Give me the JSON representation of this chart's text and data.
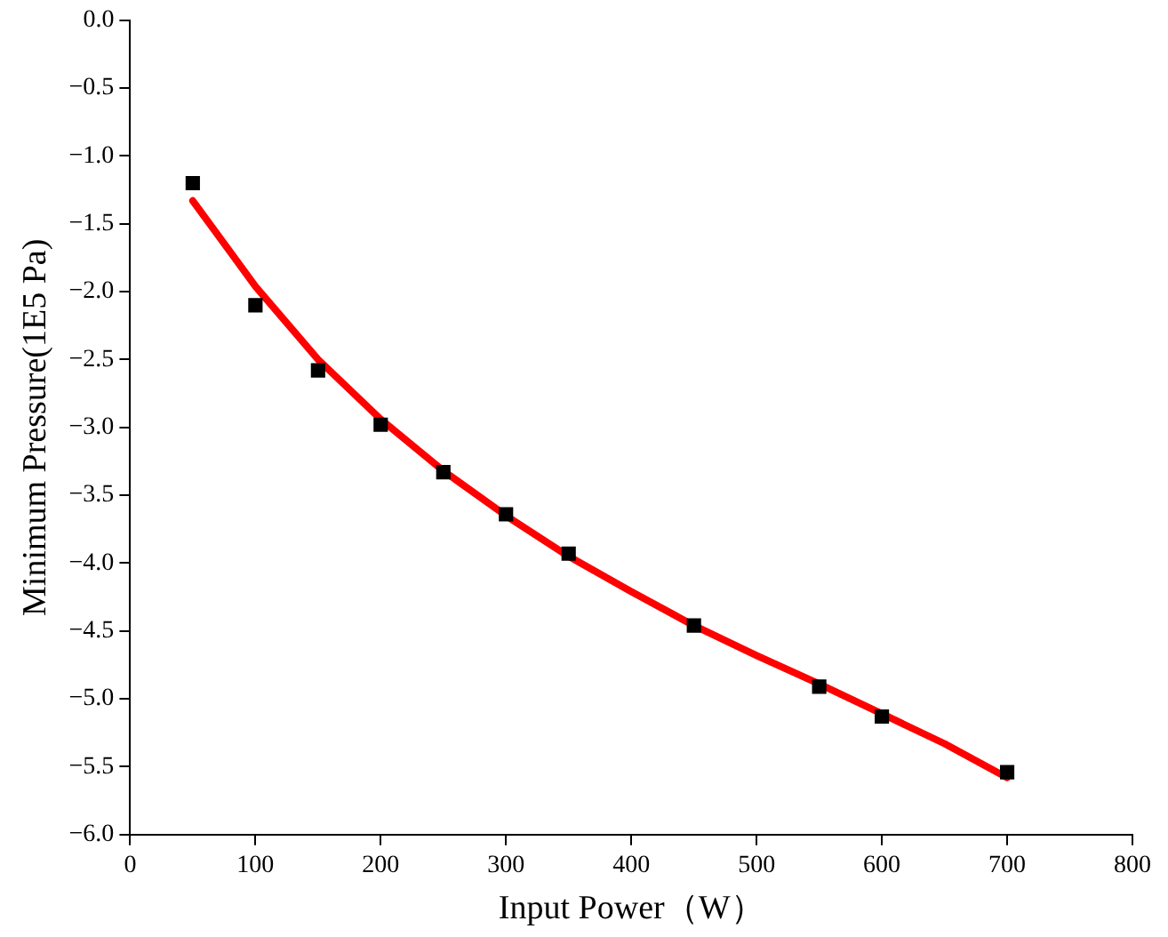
{
  "chart_data": {
    "type": "scatter",
    "xlabel": "Input Power（W）",
    "ylabel": "Minimum Pressure(1E5 Pa)",
    "xlim": [
      0,
      800
    ],
    "xticks": [
      0,
      100,
      200,
      300,
      400,
      500,
      600,
      700,
      800
    ],
    "ylim": [
      -6,
      0
    ],
    "yticks": [
      {
        "value": 0,
        "label": "0.0"
      },
      {
        "value": -0.5,
        "label": "−0.5"
      },
      {
        "value": -1,
        "label": "−1.0"
      },
      {
        "value": -1.5,
        "label": "−1.5"
      },
      {
        "value": -2,
        "label": "−2.0"
      },
      {
        "value": -2.5,
        "label": "−2.5"
      },
      {
        "value": -3,
        "label": "−3.0"
      },
      {
        "value": -3.5,
        "label": "−3.5"
      },
      {
        "value": -4,
        "label": "−4.0"
      },
      {
        "value": -4.5,
        "label": "−4.5"
      },
      {
        "value": -5,
        "label": "−5.0"
      },
      {
        "value": -5.5,
        "label": "−5.5"
      },
      {
        "value": -6,
        "label": "−6.0"
      }
    ],
    "grid": false,
    "legend": false,
    "series": [
      {
        "type": "scatter",
        "color": "#000000",
        "marker": "square",
        "x": [
          50,
          100,
          150,
          200,
          250,
          300,
          350,
          450,
          550,
          600,
          700
        ],
        "values": [
          -1.2,
          -2.1,
          -2.58,
          -2.98,
          -3.33,
          -3.64,
          -3.93,
          -4.46,
          -4.91,
          -5.13,
          -5.54
        ]
      },
      {
        "type": "line",
        "color": "#ff0000",
        "marker": "none",
        "line_style": "solid",
        "x": [
          50,
          100,
          150,
          200,
          250,
          300,
          350,
          400,
          450,
          500,
          550,
          600,
          650,
          700
        ],
        "values": [
          -1.33,
          -1.96,
          -2.5,
          -2.94,
          -3.32,
          -3.65,
          -3.95,
          -4.21,
          -4.46,
          -4.68,
          -4.89,
          -5.11,
          -5.33,
          -5.58
        ]
      }
    ]
  }
}
